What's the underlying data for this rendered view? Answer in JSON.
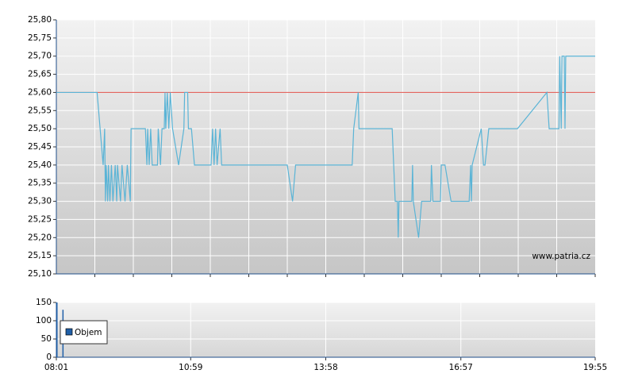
{
  "chart_data": [
    {
      "type": "line",
      "x": [
        "08:01",
        "08:55",
        "09:03",
        "09:05",
        "09:06",
        "09:07",
        "09:09",
        "09:10",
        "09:12",
        "09:14",
        "09:16",
        "09:19",
        "09:21",
        "09:22",
        "09:26",
        "09:28",
        "09:32",
        "09:35",
        "09:39",
        "09:40",
        "09:59",
        "10:01",
        "10:02",
        "10:04",
        "10:06",
        "10:08",
        "10:15",
        "10:16",
        "10:19",
        "10:21",
        "10:24",
        "10:25",
        "10:26",
        "10:28",
        "10:30",
        "10:32",
        "10:35",
        "10:43",
        "10:50",
        "10:51",
        "10:55",
        "10:56",
        "11:00",
        "11:04",
        "11:26",
        "11:28",
        "11:30",
        "11:32",
        "11:34",
        "11:38",
        "11:40",
        "13:07",
        "13:14",
        "13:18",
        "14:33",
        "14:35",
        "14:41",
        "14:42",
        "15:26",
        "15:28",
        "15:30",
        "15:33",
        "15:34",
        "15:35",
        "15:52",
        "15:53",
        "15:54",
        "16:01",
        "16:05",
        "16:17",
        "16:18",
        "16:20",
        "16:30",
        "16:31",
        "16:36",
        "16:44",
        "17:08",
        "17:10",
        "17:11",
        "17:12",
        "17:24",
        "17:27",
        "17:29",
        "17:34",
        "18:12",
        "18:51",
        "18:54",
        "19:07",
        "19:08",
        "19:10",
        "19:11",
        "19:14",
        "19:15",
        "19:16",
        "19:55"
      ],
      "values": [
        25.6,
        25.6,
        25.4,
        25.5,
        25.3,
        25.4,
        25.3,
        25.4,
        25.3,
        25.4,
        25.3,
        25.4,
        25.3,
        25.4,
        25.3,
        25.4,
        25.3,
        25.4,
        25.3,
        25.5,
        25.5,
        25.4,
        25.5,
        25.4,
        25.5,
        25.4,
        25.4,
        25.5,
        25.4,
        25.5,
        25.5,
        25.6,
        25.5,
        25.6,
        25.5,
        25.6,
        25.5,
        25.4,
        25.5,
        25.6,
        25.6,
        25.5,
        25.5,
        25.4,
        25.4,
        25.5,
        25.4,
        25.5,
        25.4,
        25.5,
        25.4,
        25.4,
        25.3,
        25.4,
        25.4,
        25.5,
        25.6,
        25.5,
        25.5,
        25.4,
        25.3,
        25.3,
        25.2,
        25.3,
        25.3,
        25.4,
        25.3,
        25.2,
        25.3,
        25.3,
        25.4,
        25.3,
        25.3,
        25.4,
        25.4,
        25.3,
        25.3,
        25.4,
        25.3,
        25.4,
        25.5,
        25.4,
        25.4,
        25.5,
        25.5,
        25.6,
        25.5,
        25.5,
        25.7,
        25.5,
        25.7,
        25.7,
        25.5,
        25.7,
        25.7
      ],
      "color": "#5ab4d6",
      "reference_line": {
        "value": 25.6,
        "color": "#e0504a"
      },
      "xlim": [
        "08:01",
        "19:55"
      ],
      "ylim": [
        25.1,
        25.8
      ],
      "yticks": [
        {
          "value": 25.1,
          "label": "25,10"
        },
        {
          "value": 25.15,
          "label": "25,15"
        },
        {
          "value": 25.2,
          "label": "25,20"
        },
        {
          "value": 25.25,
          "label": "25,25"
        },
        {
          "value": 25.3,
          "label": "25,30"
        },
        {
          "value": 25.35,
          "label": "25,35"
        },
        {
          "value": 25.4,
          "label": "25,40"
        },
        {
          "value": 25.45,
          "label": "25,45"
        },
        {
          "value": 25.5,
          "label": "25,50"
        },
        {
          "value": 25.55,
          "label": "25,55"
        },
        {
          "value": 25.6,
          "label": "25,60"
        },
        {
          "value": 25.65,
          "label": "25,65"
        },
        {
          "value": 25.7,
          "label": "25,70"
        },
        {
          "value": 25.75,
          "label": "25,75"
        },
        {
          "value": 25.8,
          "label": "25,80"
        }
      ],
      "grid": true,
      "watermark": "www.patria.cz"
    },
    {
      "type": "bar",
      "x": [
        "08:01",
        "08:09"
      ],
      "series": [
        {
          "name": "Objem",
          "color": "#1f5fa8",
          "values": [
            150,
            130
          ]
        }
      ],
      "xlim": [
        "08:01",
        "19:55"
      ],
      "xticks": [
        "08:01",
        "10:59",
        "13:58",
        "16:57",
        "19:55"
      ],
      "ylim": [
        0,
        150
      ],
      "yticks": [
        0,
        50,
        100,
        150
      ],
      "grid": true,
      "legend": "upper left"
    }
  ]
}
